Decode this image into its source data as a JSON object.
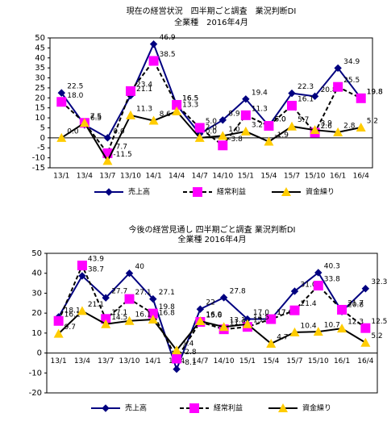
{
  "chart_data": [
    {
      "type": "line",
      "title": "現在の経営状況　四半期ごと調査　業況判断DI",
      "subtitle": "全業種　2016年4月",
      "categories": [
        "13/1",
        "13/4",
        "13/7",
        "13/10",
        "14/1",
        "14/4",
        "14/7",
        "14/10",
        "15/1",
        "15/4",
        "15/7",
        "15/10",
        "16/1",
        "16/4"
      ],
      "ylim": [
        -15,
        50
      ],
      "yticks": [
        -15,
        -10,
        -5,
        0,
        5,
        10,
        15,
        20,
        25,
        30,
        35,
        40,
        45,
        50
      ],
      "grid": false,
      "series": [
        {
          "name": "売上高",
          "color": "#000080",
          "line_color": "#000080",
          "marker": "diamond",
          "dashed": false,
          "values": [
            22.5,
            6.5,
            0.0,
            21.1,
            46.9,
            16.5,
            2.0,
            8.9,
            19.4,
            6.0,
            22.3,
            20.8,
            34.9,
            19.8
          ],
          "value_labels": [
            "22.5",
            "6.5",
            "0.0",
            "21.1",
            "46.9",
            "16.5",
            "2.0",
            "8.9",
            "19.4",
            "6.0",
            "22.3",
            "20.8",
            "34.9",
            "19.8"
          ]
        },
        {
          "name": "経常利益",
          "color": "#ff00ff",
          "line_color": "#000000",
          "marker": "square",
          "dashed": true,
          "values": [
            18.0,
            7.5,
            -7.7,
            23.4,
            38.5,
            16.5,
            5.0,
            -3.8,
            11.3,
            6.0,
            16.1,
            2.6,
            25.5,
            19.8
          ],
          "value_labels": [
            "18.0",
            "7.5",
            "-7.7",
            "23.4",
            "38.5",
            "16.5",
            "5.0",
            "-3.8",
            "11.3",
            "6.0",
            "16.1",
            "2.6",
            "25.5",
            "19.8"
          ]
        },
        {
          "name": "資金繰り",
          "color": "#ffcc00",
          "line_color": "#000000",
          "marker": "triangle",
          "dashed": false,
          "values": [
            0.0,
            7.5,
            -11.5,
            11.3,
            8.6,
            13.3,
            0.0,
            1.0,
            3.2,
            -1.9,
            5.7,
            3.9,
            2.8,
            5.2
          ],
          "value_labels": [
            "0.0",
            "7.5",
            "-11.5",
            "11.3",
            "8.6",
            "13.3",
            "0.0",
            "1.0",
            "3.2",
            "-1.9",
            "5.7",
            "3.9",
            "2.8",
            "5.2"
          ]
        }
      ],
      "legend": "bottom"
    },
    {
      "type": "line",
      "title": "今後の経営見通し 四半期ごと調査 業況判断DI",
      "subtitle": "全業種 2016年4月",
      "categories": [
        "13/1",
        "13/4",
        "13/7",
        "13/10",
        "14/1",
        "14/4",
        "14/7",
        "14/10",
        "15/1",
        "15/4",
        "15/7",
        "15/10",
        "16/1",
        "16/4"
      ],
      "ylim": [
        -20,
        50
      ],
      "yticks": [
        -20,
        -10,
        0,
        10,
        20,
        30,
        40,
        50
      ],
      "grid": false,
      "series": [
        {
          "name": "売上高",
          "color": "#000080",
          "line_color": "#000080",
          "marker": "diamond",
          "dashed": false,
          "values": [
            18.1,
            38.7,
            27.7,
            40,
            27.1,
            -8.1,
            22,
            27.8,
            17.0,
            17.0,
            31.0,
            40.3,
            20.8,
            32.3
          ],
          "value_labels": [
            "18.1",
            "38.7",
            "27.7",
            "40",
            "27.1",
            "-8.1",
            "22",
            "27.8",
            "17.0",
            "17.0",
            "31.0",
            "40.3",
            "20.8",
            "32.3"
          ]
        },
        {
          "name": "経常利益",
          "color": "#ff00ff",
          "line_color": "#000000",
          "marker": "square",
          "dashed": true,
          "values": [
            16.1,
            43.9,
            17.1,
            27.1,
            19.8,
            -2.8,
            15.6,
            11.9,
            13.1,
            17.0,
            21.4,
            33.8,
            21.7,
            12.5
          ],
          "value_labels": [
            "16.1",
            "43.9",
            "17.1",
            "27.1",
            "19.8",
            "-2.8",
            "15.6",
            "11.9",
            "13.1",
            "17.0",
            "21.4",
            "33.8",
            "21.7",
            "12.5"
          ]
        },
        {
          "name": "資金繰り",
          "color": "#ffcc00",
          "line_color": "#000000",
          "marker": "triangle",
          "dashed": false,
          "values": [
            9.7,
            21.1,
            14.5,
            16.1,
            16.8,
            1.4,
            16.0,
            13.1,
            14.5,
            4.7,
            10.4,
            10.7,
            12.3,
            5.2
          ],
          "value_labels": [
            "9.7",
            "21.1",
            "14.5",
            "16.1",
            "16.8",
            "1.4",
            "16.0",
            "13.1",
            "14.5",
            "4.7",
            "10.4",
            "10.7",
            "12.3",
            "5.2"
          ]
        }
      ],
      "legend": "bottom"
    }
  ]
}
